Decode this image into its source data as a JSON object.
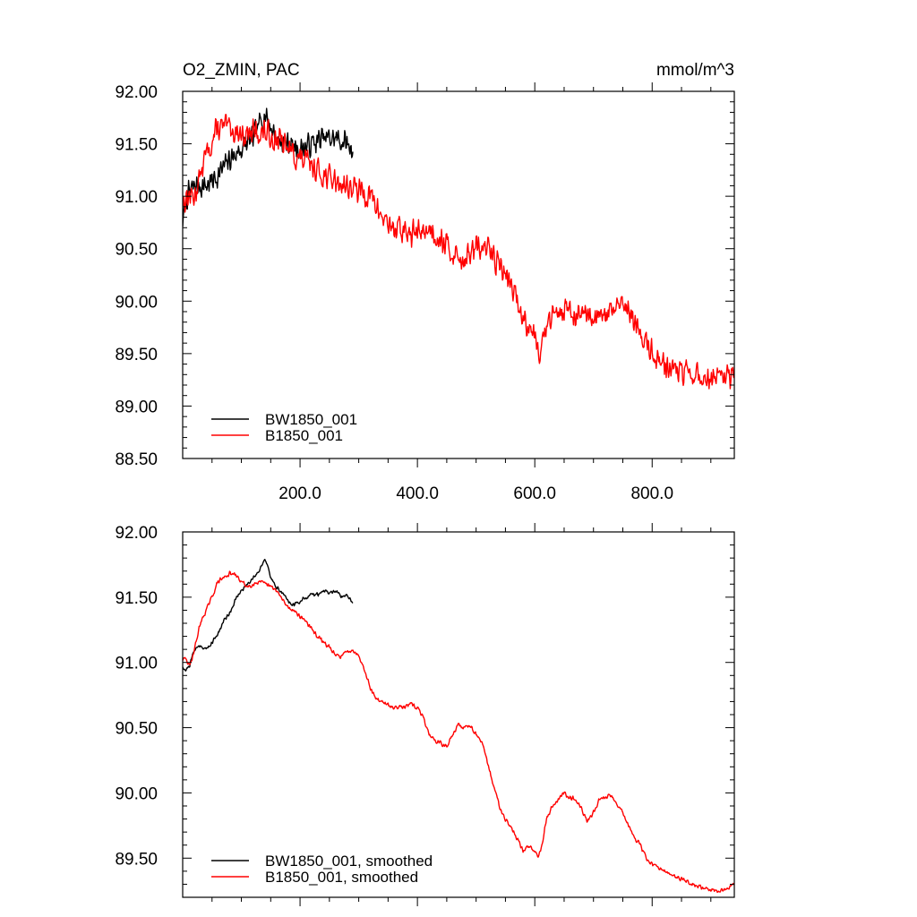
{
  "figure": {
    "title_left": "O2_ZMIN, PAC",
    "title_right": "mmol/m^3"
  },
  "chart_data": [
    {
      "type": "line",
      "title": "O2_ZMIN, PAC",
      "units": "mmol/m^3",
      "xlim": [
        0,
        940
      ],
      "ylim": [
        88.5,
        92.0
      ],
      "x_ticks": [
        200,
        400,
        600,
        800
      ],
      "x_tick_labels": [
        "200.0",
        "400.0",
        "600.0",
        "800.0"
      ],
      "y_ticks": [
        88.5,
        89.0,
        89.5,
        90.0,
        90.5,
        91.0,
        91.5,
        92.0
      ],
      "y_tick_labels": [
        "88.50",
        "89.00",
        "89.50",
        "90.00",
        "90.50",
        "91.00",
        "91.50",
        "92.00"
      ],
      "legend_position": "bottom-left",
      "series": [
        {
          "name": "BW1850_001",
          "color": "#000000",
          "noise": 0.14,
          "seed": 7,
          "x": [
            0,
            8,
            20,
            40,
            60,
            80,
            100,
            120,
            140,
            160,
            180,
            200,
            220,
            240,
            260,
            280,
            290
          ],
          "y": [
            90.75,
            91.0,
            91.1,
            91.1,
            91.2,
            91.35,
            91.45,
            91.55,
            91.8,
            91.55,
            91.5,
            91.45,
            91.5,
            91.55,
            91.55,
            91.5,
            91.45
          ]
        },
        {
          "name": "B1850_001",
          "color": "#ff0000",
          "noise": 0.15,
          "seed": 13,
          "x": [
            0,
            10,
            20,
            40,
            60,
            80,
            100,
            120,
            140,
            160,
            180,
            200,
            220,
            240,
            260,
            280,
            300,
            320,
            340,
            360,
            380,
            400,
            420,
            440,
            460,
            480,
            500,
            520,
            540,
            560,
            580,
            600,
            610,
            620,
            640,
            660,
            680,
            700,
            720,
            740,
            760,
            780,
            800,
            820,
            840,
            860,
            880,
            900,
            920,
            940
          ],
          "y": [
            90.95,
            91.0,
            91.0,
            91.4,
            91.65,
            91.65,
            91.6,
            91.6,
            91.6,
            91.55,
            91.45,
            91.35,
            91.3,
            91.2,
            91.15,
            91.1,
            91.05,
            91.0,
            90.8,
            90.7,
            90.65,
            90.65,
            90.7,
            90.6,
            90.45,
            90.4,
            90.5,
            90.5,
            90.35,
            90.15,
            89.85,
            89.7,
            89.5,
            89.75,
            89.95,
            89.9,
            89.85,
            89.8,
            89.85,
            89.95,
            89.9,
            89.7,
            89.5,
            89.4,
            89.35,
            89.3,
            89.28,
            89.25,
            89.25,
            89.3
          ]
        }
      ]
    },
    {
      "type": "line",
      "title": "",
      "xlim": [
        0,
        940
      ],
      "ylim": [
        89.2,
        92.0
      ],
      "x_ticks": [
        200,
        400,
        600,
        800
      ],
      "x_tick_labels": [],
      "y_ticks": [
        89.5,
        90.0,
        90.5,
        91.0,
        91.5,
        92.0
      ],
      "y_tick_labels": [
        "89.50",
        "90.00",
        "90.50",
        "91.00",
        "91.50",
        "92.00"
      ],
      "legend_position": "bottom-left",
      "series": [
        {
          "name": "BW1850_001, smoothed",
          "color": "#000000",
          "noise": 0.018,
          "seed": 21,
          "x": [
            0,
            5,
            12,
            20,
            30,
            40,
            50,
            60,
            70,
            80,
            90,
            100,
            110,
            120,
            130,
            140,
            150,
            160,
            170,
            180,
            190,
            200,
            210,
            220,
            230,
            240,
            250,
            260,
            270,
            280,
            290
          ],
          "y": [
            90.97,
            90.94,
            90.98,
            91.1,
            91.13,
            91.1,
            91.15,
            91.22,
            91.32,
            91.38,
            91.48,
            91.55,
            91.6,
            91.65,
            91.7,
            91.8,
            91.65,
            91.58,
            91.53,
            91.47,
            91.44,
            91.47,
            91.5,
            91.52,
            91.52,
            91.55,
            91.53,
            91.55,
            91.5,
            91.52,
            91.45
          ]
        },
        {
          "name": "B1850_001, smoothed",
          "color": "#ff0000",
          "noise": 0.02,
          "seed": 29,
          "x": [
            0,
            5,
            12,
            20,
            30,
            40,
            50,
            60,
            70,
            80,
            90,
            100,
            110,
            120,
            130,
            140,
            150,
            160,
            170,
            180,
            190,
            200,
            210,
            220,
            230,
            240,
            250,
            260,
            270,
            280,
            290,
            300,
            310,
            320,
            330,
            340,
            350,
            360,
            370,
            380,
            390,
            400,
            410,
            420,
            430,
            440,
            450,
            460,
            470,
            480,
            490,
            500,
            510,
            520,
            530,
            540,
            550,
            560,
            570,
            580,
            590,
            600,
            606,
            612,
            620,
            630,
            640,
            650,
            660,
            670,
            680,
            690,
            700,
            710,
            720,
            730,
            740,
            750,
            760,
            770,
            780,
            790,
            800,
            810,
            820,
            830,
            840,
            850,
            860,
            870,
            880,
            890,
            900,
            910,
            920,
            930,
            940
          ],
          "y": [
            91.02,
            91.03,
            90.97,
            91.1,
            91.3,
            91.4,
            91.5,
            91.62,
            91.65,
            91.68,
            91.67,
            91.62,
            91.58,
            91.6,
            91.62,
            91.6,
            91.58,
            91.55,
            91.48,
            91.42,
            91.4,
            91.35,
            91.32,
            91.25,
            91.2,
            91.15,
            91.12,
            91.05,
            91.05,
            91.08,
            91.1,
            91.05,
            90.95,
            90.8,
            90.72,
            90.7,
            90.67,
            90.65,
            90.67,
            90.66,
            90.68,
            90.65,
            90.58,
            90.45,
            90.4,
            90.38,
            90.35,
            90.45,
            90.52,
            90.5,
            90.52,
            90.45,
            90.38,
            90.22,
            90.05,
            89.9,
            89.8,
            89.73,
            89.65,
            89.55,
            89.6,
            89.55,
            89.52,
            89.6,
            89.8,
            89.9,
            89.95,
            90.0,
            89.97,
            89.95,
            89.87,
            89.78,
            89.85,
            89.95,
            89.97,
            89.98,
            89.92,
            89.85,
            89.75,
            89.65,
            89.6,
            89.5,
            89.45,
            89.43,
            89.4,
            89.38,
            89.36,
            89.34,
            89.32,
            89.3,
            89.28,
            89.27,
            89.26,
            89.25,
            89.25,
            89.27,
            89.3
          ]
        }
      ]
    }
  ]
}
